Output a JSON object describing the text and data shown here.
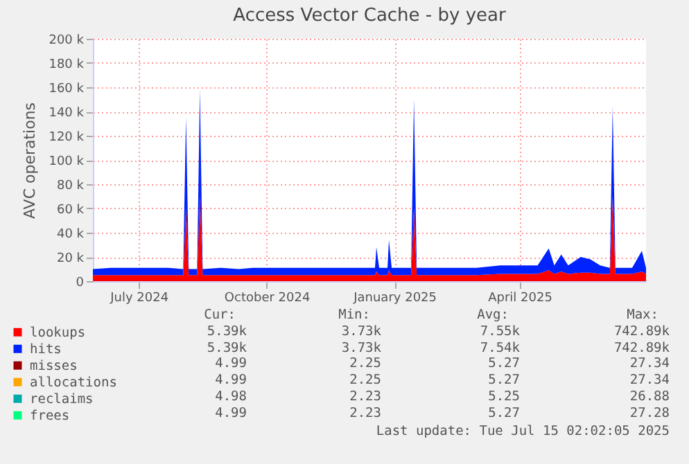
{
  "chart_data": {
    "type": "area",
    "stacked": true,
    "title": "Access Vector Cache - by year",
    "ylabel": "AVC operations",
    "x": [
      "2024-06-12",
      "2024-06-25",
      "2024-07-08",
      "2024-07-20",
      "2024-08-05",
      "2024-08-16",
      "2024-08-18",
      "2024-08-20",
      "2024-08-26",
      "2024-08-28",
      "2024-08-30",
      "2024-09-12",
      "2024-09-25",
      "2024-10-05",
      "2024-10-20",
      "2024-11-05",
      "2024-11-20",
      "2024-12-05",
      "2024-12-20",
      "2025-01-01",
      "2025-01-02",
      "2025-01-04",
      "2025-01-10",
      "2025-01-11",
      "2025-01-13",
      "2025-01-27",
      "2025-01-29",
      "2025-01-31",
      "2025-02-15",
      "2025-03-01",
      "2025-03-15",
      "2025-04-01",
      "2025-04-15",
      "2025-04-28",
      "2025-05-06",
      "2025-05-10",
      "2025-05-15",
      "2025-05-20",
      "2025-05-29",
      "2025-06-05",
      "2025-06-12",
      "2025-06-19",
      "2025-06-21",
      "2025-06-23",
      "2025-07-05",
      "2025-07-12",
      "2025-07-15"
    ],
    "series": [
      {
        "name": "lookups",
        "color": "#ff0000",
        "values": [
          5000,
          5000,
          5000,
          5000,
          5000,
          5000,
          60000,
          5000,
          5000,
          70000,
          5000,
          5000,
          5000,
          5000,
          5000,
          5000,
          5000,
          5000,
          5000,
          5000,
          8000,
          5000,
          5000,
          9000,
          5000,
          5000,
          60000,
          5000,
          5000,
          5000,
          5000,
          6000,
          6000,
          6000,
          9000,
          6000,
          8000,
          6000,
          7000,
          7000,
          6000,
          6000,
          70000,
          6000,
          6000,
          8000,
          6000
        ]
      },
      {
        "name": "hits",
        "color": "#0022ff",
        "values": [
          5000,
          6000,
          6000,
          6000,
          6000,
          5000,
          75000,
          5000,
          5000,
          88000,
          5000,
          6000,
          5000,
          6000,
          6000,
          6000,
          6000,
          6000,
          6000,
          6000,
          20000,
          6000,
          6000,
          25000,
          6000,
          6000,
          90000,
          6000,
          6000,
          6000,
          6000,
          7000,
          7000,
          7000,
          18000,
          7000,
          14000,
          7000,
          13000,
          11000,
          7000,
          5000,
          74000,
          5000,
          5000,
          17000,
          5000
        ]
      },
      {
        "name": "misses",
        "color": "#990000",
        "values": [
          null,
          null,
          null,
          null,
          null,
          null,
          null,
          null,
          null,
          null,
          null,
          null,
          null,
          null,
          null,
          null,
          null,
          null,
          null,
          null,
          null,
          null,
          null,
          null,
          null,
          null,
          null,
          null,
          null,
          null,
          null,
          null,
          null,
          null,
          null,
          null,
          null,
          null,
          null,
          null,
          null,
          null,
          null,
          null,
          null,
          null,
          null
        ]
      },
      {
        "name": "allocations",
        "color": "#ffa500",
        "values": [
          null,
          null,
          null,
          null,
          null,
          null,
          null,
          null,
          null,
          null,
          null,
          null,
          null,
          null,
          null,
          null,
          null,
          null,
          null,
          null,
          null,
          null,
          null,
          null,
          null,
          null,
          null,
          null,
          null,
          null,
          null,
          null,
          null,
          null,
          null,
          null,
          null,
          null,
          null,
          null,
          null,
          null,
          null,
          null,
          null,
          null,
          null
        ]
      },
      {
        "name": "reclaims",
        "color": "#00aaaa",
        "values": [
          null,
          null,
          null,
          null,
          null,
          null,
          null,
          null,
          null,
          null,
          null,
          null,
          null,
          null,
          null,
          null,
          null,
          null,
          null,
          null,
          null,
          null,
          null,
          null,
          null,
          null,
          null,
          null,
          null,
          null,
          null,
          null,
          null,
          null,
          null,
          null,
          null,
          null,
          null,
          null,
          null,
          null,
          null,
          null,
          null,
          null,
          null
        ]
      },
      {
        "name": "frees",
        "color": "#00ff7f",
        "values": [
          null,
          null,
          null,
          null,
          null,
          null,
          null,
          null,
          null,
          null,
          null,
          null,
          null,
          null,
          null,
          null,
          null,
          null,
          null,
          null,
          null,
          null,
          null,
          null,
          null,
          null,
          null,
          null,
          null,
          null,
          null,
          null,
          null,
          null,
          null,
          null,
          null,
          null,
          null,
          null,
          null,
          null,
          null,
          null,
          null,
          null,
          null
        ]
      }
    ],
    "xlim": [
      "2024-06-12",
      "2025-07-15"
    ],
    "xticks": [
      {
        "value": "2024-07-15",
        "label": "July 2024"
      },
      {
        "value": "2024-10-15",
        "label": "October 2024"
      },
      {
        "value": "2025-01-15",
        "label": "January 2025"
      },
      {
        "value": "2025-04-15",
        "label": "April 2025"
      }
    ],
    "ylim": [
      0,
      200000
    ],
    "yticks": [
      0,
      {
        "value": 20000,
        "label": "20 k"
      },
      {
        "value": 40000,
        "label": "40 k"
      },
      {
        "value": 60000,
        "label": "60 k"
      },
      {
        "value": 80000,
        "label": "80 k"
      },
      {
        "value": 100000,
        "label": "100 k"
      },
      {
        "value": 120000,
        "label": "120 k"
      },
      {
        "value": 140000,
        "label": "140 k"
      },
      {
        "value": 160000,
        "label": "160 k"
      },
      {
        "value": 180000,
        "label": "180 k"
      },
      {
        "value": 200000,
        "label": "200 k"
      }
    ],
    "grid": true,
    "legend": "bottom left",
    "annotations": [
      "Cur:",
      "Min:",
      "Avg:",
      "Max:",
      "5.39k",
      "3.73k",
      "7.55k",
      "742.89k",
      "5.39k",
      "3.73k",
      "7.54k",
      "742.89k",
      "4.99",
      "2.25",
      "5.27",
      "27.34",
      "4.99",
      "2.25",
      "5.27",
      "27.34",
      "4.98",
      "2.23",
      "5.25",
      "26.88",
      "4.99",
      "2.23",
      "5.27",
      "27.28",
      "Last update: Tue Jul 15 02:02:05 2025"
    ]
  }
}
